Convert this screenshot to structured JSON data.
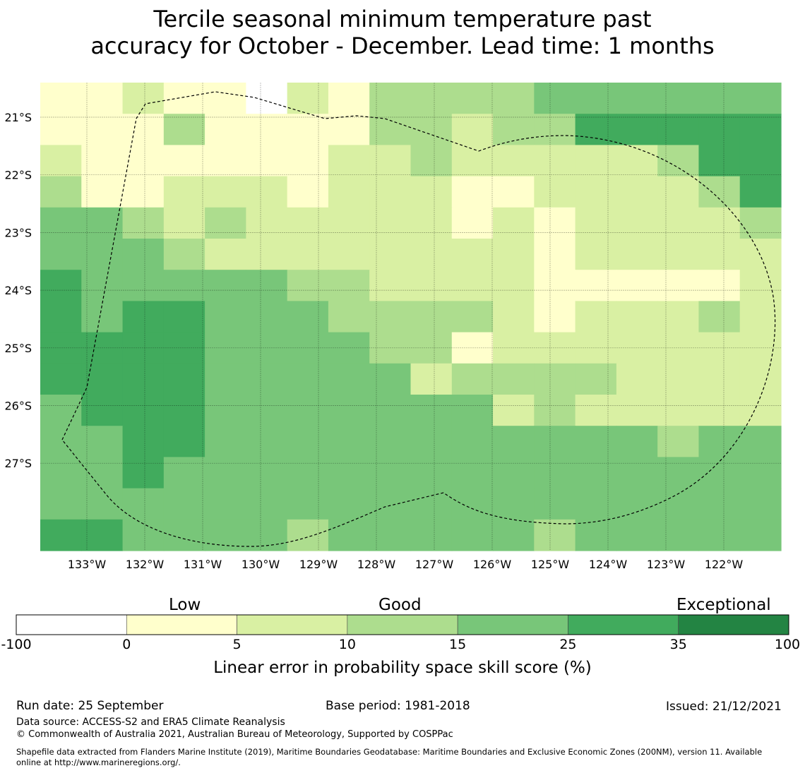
{
  "title_line1": "Tercile seasonal minimum temperature past",
  "title_line2": "accuracy for October - December. Lead time: 1 months",
  "map": {
    "lon_labels": [
      "133°W",
      "132°W",
      "131°W",
      "130°W",
      "129°W",
      "128°W",
      "127°W",
      "126°W",
      "125°W",
      "124°W",
      "123°W",
      "122°W"
    ],
    "lat_labels": [
      "21°S",
      "22°S",
      "23°S",
      "24°S",
      "25°S",
      "26°S",
      "27°S"
    ],
    "grid": [
      [
        1,
        1,
        2,
        1,
        1,
        0,
        2,
        1,
        3,
        3,
        3,
        3,
        4,
        4,
        4,
        4,
        4,
        4
      ],
      [
        1,
        1,
        1,
        3,
        1,
        1,
        1,
        1,
        3,
        3,
        2,
        3,
        3,
        5,
        5,
        5,
        5,
        5
      ],
      [
        2,
        1,
        1,
        1,
        1,
        1,
        1,
        2,
        2,
        3,
        2,
        2,
        2,
        2,
        2,
        3,
        5,
        5
      ],
      [
        3,
        1,
        1,
        2,
        2,
        2,
        1,
        2,
        2,
        2,
        1,
        1,
        2,
        2,
        2,
        2,
        3,
        5
      ],
      [
        4,
        4,
        3,
        2,
        3,
        2,
        2,
        2,
        2,
        2,
        1,
        2,
        1,
        2,
        2,
        2,
        2,
        3
      ],
      [
        4,
        4,
        4,
        3,
        2,
        2,
        2,
        2,
        2,
        2,
        2,
        2,
        1,
        2,
        2,
        2,
        2,
        2
      ],
      [
        5,
        4,
        4,
        4,
        4,
        4,
        3,
        3,
        2,
        2,
        2,
        2,
        1,
        1,
        1,
        1,
        1,
        2
      ],
      [
        5,
        4,
        5,
        5,
        4,
        4,
        4,
        3,
        3,
        3,
        3,
        2,
        1,
        2,
        2,
        2,
        3,
        2
      ],
      [
        5,
        5,
        5,
        5,
        4,
        4,
        4,
        4,
        3,
        3,
        1,
        2,
        2,
        2,
        2,
        2,
        2,
        2
      ],
      [
        5,
        5,
        5,
        5,
        4,
        4,
        4,
        4,
        4,
        2,
        3,
        3,
        3,
        3,
        2,
        2,
        2,
        2
      ],
      [
        4,
        5,
        5,
        5,
        4,
        4,
        4,
        4,
        4,
        4,
        4,
        2,
        3,
        2,
        2,
        2,
        2,
        2
      ],
      [
        4,
        4,
        5,
        5,
        4,
        4,
        4,
        4,
        4,
        4,
        4,
        4,
        4,
        4,
        4,
        3,
        4,
        4
      ],
      [
        4,
        4,
        5,
        4,
        4,
        4,
        4,
        4,
        4,
        4,
        4,
        4,
        4,
        4,
        4,
        4,
        4,
        4
      ],
      [
        4,
        4,
        4,
        4,
        4,
        4,
        4,
        4,
        4,
        4,
        4,
        4,
        4,
        4,
        4,
        4,
        4,
        4
      ],
      [
        5,
        5,
        4,
        4,
        4,
        4,
        3,
        4,
        4,
        4,
        4,
        4,
        3,
        4,
        4,
        4,
        4,
        4
      ]
    ]
  },
  "colorbar": {
    "categories": [
      "Low",
      "Good",
      "Exceptional"
    ],
    "ticks": [
      "-100",
      "0",
      "5",
      "10",
      "15",
      "25",
      "35",
      "100"
    ],
    "colors": [
      "#ffffff",
      "#ffffcc",
      "#d9f0a3",
      "#addd8e",
      "#78c679",
      "#41ab5d",
      "#238443"
    ],
    "label": "Linear error in probability space skill score (%)"
  },
  "footer": {
    "run_date": "Run date: 25 September",
    "base_period": "Base period: 1981-2018",
    "issued": "Issued: 21/12/2021",
    "data_source": "Data source: ACCESS-S2 and ERA5 Climate Reanalysis",
    "copyright": "© Commonwealth of Australia 2021, Australian Bureau of Meteorology, Supported by COSPPac",
    "shapefile_line1": "Shapefile data extracted from Flanders Marine Institute (2019), Maritime Boundaries Geodatabase: Maritime Boundaries and Exclusive Economic Zones (200NM), version 11. Available",
    "shapefile_line2": "online at http://www.marineregions.org/."
  }
}
